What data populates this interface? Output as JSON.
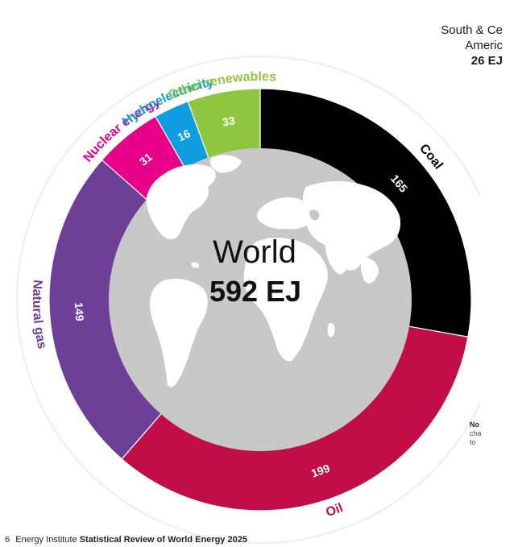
{
  "chart_data": {
    "type": "donut",
    "center_title": "World",
    "center_total": "592 EJ",
    "total": 592,
    "unit": "EJ",
    "slices": [
      {
        "name": "Coal",
        "value": 165,
        "color": "#000000",
        "label_color": "#000000"
      },
      {
        "name": "Oil",
        "value": 199,
        "color": "#c10e48",
        "label_color": "#c10e48"
      },
      {
        "name": "Natural gas",
        "value": 149,
        "color": "#6e3f97",
        "label_color": "#6e3f97"
      },
      {
        "name": "Nuclear energy",
        "value": 31,
        "color": "#e8008a",
        "label_color": "#e8008a"
      },
      {
        "name": "Hydroelectricity",
        "value": 16,
        "color": "#0e9ee0",
        "label_color": "#0e9ee0"
      },
      {
        "name": "Other renewables",
        "value": 33,
        "color": "#8ec63f",
        "label_color": "#8ec63f"
      }
    ],
    "inner_fill": "#c8c8c8",
    "map_fill": "#ffffff"
  },
  "side_panel": {
    "region_line1": "South & Ce",
    "region_line2": "Americ",
    "region_value": "26 EJ"
  },
  "note": {
    "bold": "No",
    "line1": "cha",
    "line2": "to"
  },
  "footer": {
    "page_number": "6",
    "publisher": "Energy Institute",
    "title": "Statistical Review of World Energy 2025"
  }
}
